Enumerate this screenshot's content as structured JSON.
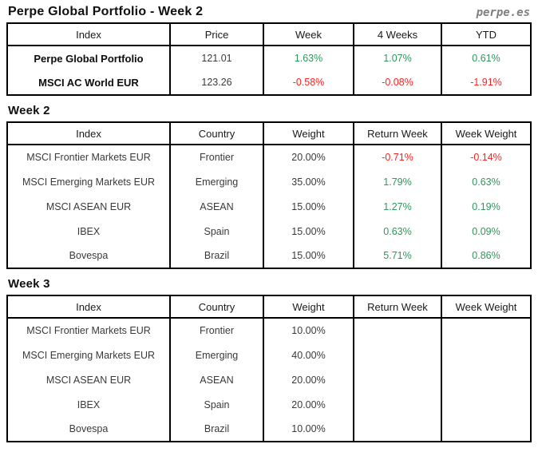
{
  "page": {
    "title": "Perpe Global Portfolio - Week 2",
    "logo": "perpe.es"
  },
  "colors": {
    "positive": "#2f9659",
    "negative": "#ff1f1f",
    "logo_gray": "#7f7f7f",
    "border": "#000000"
  },
  "summary": {
    "headers": [
      "Index",
      "Price",
      "Week",
      "4 Weeks",
      "YTD"
    ],
    "rows": [
      {
        "index": "Perpe Global Portfolio",
        "price": "121.01",
        "week": "1.63%",
        "four_weeks": "1.07%",
        "ytd": "0.61%",
        "trend": "up"
      },
      {
        "index": "MSCI AC World EUR",
        "price": "123.26",
        "week": "-0.58%",
        "four_weeks": "-0.08%",
        "ytd": "-1.91%",
        "trend": "down"
      }
    ]
  },
  "week2": {
    "heading": "Week 2",
    "headers": [
      "Index",
      "Country",
      "Weight",
      "Return Week",
      "Week Weight"
    ],
    "rows": [
      {
        "index": "MSCI Frontier Markets EUR",
        "country": "Frontier",
        "weight": "20.00%",
        "return_week": "-0.71%",
        "week_weight": "-0.14%",
        "trend": "down"
      },
      {
        "index": "MSCI Emerging Markets EUR",
        "country": "Emerging",
        "weight": "35.00%",
        "return_week": "1.79%",
        "week_weight": "0.63%",
        "trend": "up"
      },
      {
        "index": "MSCI ASEAN EUR",
        "country": "ASEAN",
        "weight": "15.00%",
        "return_week": "1.27%",
        "week_weight": "0.19%",
        "trend": "up"
      },
      {
        "index": "IBEX",
        "country": "Spain",
        "weight": "15.00%",
        "return_week": "0.63%",
        "week_weight": "0.09%",
        "trend": "up"
      },
      {
        "index": "Bovespa",
        "country": "Brazil",
        "weight": "15.00%",
        "return_week": "5.71%",
        "week_weight": "0.86%",
        "trend": "up"
      }
    ]
  },
  "week3": {
    "heading": "Week 3",
    "headers": [
      "Index",
      "Country",
      "Weight",
      "Return Week",
      "Week Weight"
    ],
    "rows": [
      {
        "index": "MSCI Frontier Markets EUR",
        "country": "Frontier",
        "weight": "10.00%",
        "return_week": "",
        "week_weight": ""
      },
      {
        "index": "MSCI Emerging Markets EUR",
        "country": "Emerging",
        "weight": "40.00%",
        "return_week": "",
        "week_weight": ""
      },
      {
        "index": "MSCI ASEAN EUR",
        "country": "ASEAN",
        "weight": "20.00%",
        "return_week": "",
        "week_weight": ""
      },
      {
        "index": "IBEX",
        "country": "Spain",
        "weight": "20.00%",
        "return_week": "",
        "week_weight": ""
      },
      {
        "index": "Bovespa",
        "country": "Brazil",
        "weight": "10.00%",
        "return_week": "",
        "week_weight": ""
      }
    ]
  }
}
